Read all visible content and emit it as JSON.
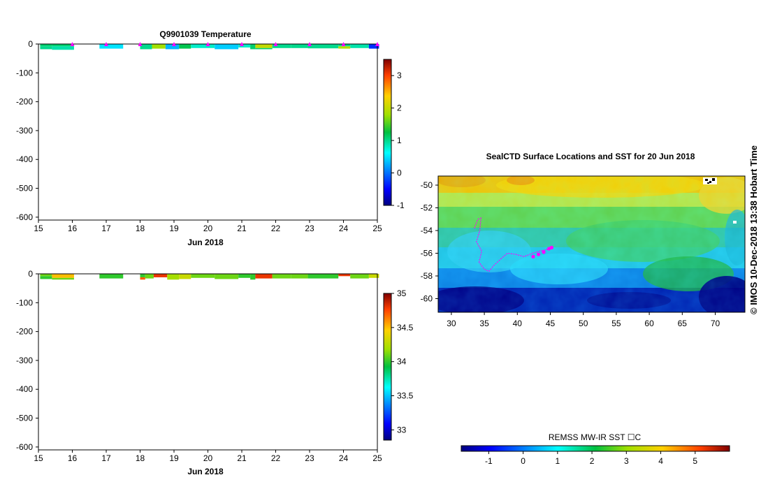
{
  "chart_data": [
    {
      "type": "heatmap",
      "title": "Q9901039  Temperature",
      "xlabel": "Jun 2018",
      "ylabel": "",
      "xlim": [
        15,
        25
      ],
      "ylim": [
        -610,
        0
      ],
      "x_ticks": [
        "15",
        "16",
        "17",
        "18",
        "19",
        "20",
        "21",
        "22",
        "23",
        "24",
        "25"
      ],
      "y_ticks": [
        "0",
        "-100",
        "-200",
        "-300",
        "-400",
        "-500",
        "-600"
      ],
      "colorbar": {
        "min": -1,
        "max": 3.5,
        "ticks": [
          "-1",
          "0",
          "1",
          "2",
          "3"
        ]
      },
      "profile_marker_days": [
        16,
        17,
        18,
        19,
        20,
        21,
        22,
        23,
        24,
        25
      ],
      "casts": [
        {
          "x0": 15.05,
          "x1": 15.4,
          "layers": [
            [
              0,
              8,
              1.1
            ],
            [
              8,
              18,
              1.0
            ]
          ]
        },
        {
          "x0": 15.4,
          "x1": 16.05,
          "layers": [
            [
              0,
              8,
              1.1
            ],
            [
              8,
              20,
              0.9
            ]
          ]
        },
        {
          "x0": 16.8,
          "x1": 17.5,
          "layers": [
            [
              0,
              16,
              0.5
            ]
          ]
        },
        {
          "x0": 18.0,
          "x1": 18.35,
          "layers": [
            [
              0,
              6,
              1.0
            ],
            [
              6,
              18,
              1.0
            ]
          ]
        },
        {
          "x0": 18.35,
          "x1": 18.75,
          "layers": [
            [
              0,
              16,
              1.8
            ]
          ]
        },
        {
          "x0": 18.75,
          "x1": 19.15,
          "layers": [
            [
              0,
              18,
              0.3
            ]
          ]
        },
        {
          "x0": 19.15,
          "x1": 19.5,
          "layers": [
            [
              0,
              16,
              1.2
            ]
          ]
        },
        {
          "x0": 19.5,
          "x1": 20.2,
          "layers": [
            [
              0,
              14,
              0.8
            ]
          ]
        },
        {
          "x0": 20.2,
          "x1": 20.9,
          "layers": [
            [
              0,
              18,
              0.4
            ]
          ]
        },
        {
          "x0": 20.9,
          "x1": 21.25,
          "layers": [
            [
              0,
              12,
              0.8
            ]
          ]
        },
        {
          "x0": 21.25,
          "x1": 21.4,
          "layers": [
            [
              0,
              18,
              1.1
            ]
          ]
        },
        {
          "x0": 21.4,
          "x1": 21.9,
          "layers": [
            [
              0,
              14,
              2.0
            ],
            [
              14,
              18,
              1.1
            ]
          ]
        },
        {
          "x0": 21.9,
          "x1": 22.45,
          "layers": [
            [
              0,
              14,
              1.0
            ]
          ]
        },
        {
          "x0": 22.45,
          "x1": 22.95,
          "layers": [
            [
              0,
              14,
              1.0
            ]
          ]
        },
        {
          "x0": 22.95,
          "x1": 23.85,
          "layers": [
            [
              0,
              15,
              1.0
            ]
          ]
        },
        {
          "x0": 23.85,
          "x1": 24.2,
          "layers": [
            [
              0,
              8,
              1.0
            ],
            [
              8,
              16,
              1.9
            ]
          ]
        },
        {
          "x0": 24.2,
          "x1": 24.75,
          "layers": [
            [
              0,
              14,
              0.9
            ]
          ]
        },
        {
          "x0": 24.75,
          "x1": 25.05,
          "layers": [
            [
              0,
              16,
              -0.3
            ]
          ]
        }
      ]
    },
    {
      "type": "heatmap",
      "title": "",
      "xlabel": "Jun 2018",
      "ylabel": "",
      "xlim": [
        15,
        25
      ],
      "ylim": [
        -610,
        0
      ],
      "x_ticks": [
        "15",
        "16",
        "17",
        "18",
        "19",
        "20",
        "21",
        "22",
        "23",
        "24",
        "25"
      ],
      "y_ticks": [
        "0",
        "-100",
        "-200",
        "-300",
        "-400",
        "-500",
        "-600"
      ],
      "colorbar": {
        "min": 32.85,
        "max": 35,
        "ticks": [
          "33",
          "33.5",
          "34",
          "34.5",
          "35"
        ],
        "tick_values": [
          33,
          33.5,
          34,
          34.5,
          35
        ]
      },
      "casts": [
        {
          "x0": 15.05,
          "x1": 15.4,
          "layers": [
            [
              0,
              8,
              34.1
            ],
            [
              8,
              18,
              34.0
            ]
          ]
        },
        {
          "x0": 15.4,
          "x1": 16.05,
          "layers": [
            [
              0,
              14,
              34.5
            ],
            [
              14,
              20,
              34.1
            ]
          ]
        },
        {
          "x0": 16.8,
          "x1": 17.5,
          "layers": [
            [
              0,
              16,
              34.0
            ]
          ]
        },
        {
          "x0": 18.0,
          "x1": 18.15,
          "layers": [
            [
              0,
              12,
              34.0
            ],
            [
              12,
              20,
              34.7
            ]
          ]
        },
        {
          "x0": 18.15,
          "x1": 18.4,
          "layers": [
            [
              0,
              16,
              34.1
            ]
          ]
        },
        {
          "x0": 18.4,
          "x1": 18.8,
          "layers": [
            [
              0,
              12,
              34.8
            ]
          ]
        },
        {
          "x0": 18.8,
          "x1": 19.15,
          "layers": [
            [
              0,
              20,
              34.2
            ]
          ]
        },
        {
          "x0": 19.15,
          "x1": 19.5,
          "layers": [
            [
              0,
              18,
              34.3
            ]
          ]
        },
        {
          "x0": 19.5,
          "x1": 20.2,
          "layers": [
            [
              0,
              14,
              34.1
            ]
          ]
        },
        {
          "x0": 20.2,
          "x1": 20.9,
          "layers": [
            [
              0,
              18,
              34.1
            ]
          ]
        },
        {
          "x0": 20.9,
          "x1": 21.25,
          "layers": [
            [
              0,
              14,
              34.0
            ]
          ]
        },
        {
          "x0": 21.25,
          "x1": 21.4,
          "layers": [
            [
              0,
              20,
              34.0
            ]
          ]
        },
        {
          "x0": 21.4,
          "x1": 21.9,
          "layers": [
            [
              0,
              16,
              34.8
            ]
          ]
        },
        {
          "x0": 21.9,
          "x1": 22.45,
          "layers": [
            [
              0,
              16,
              34.1
            ]
          ]
        },
        {
          "x0": 22.45,
          "x1": 22.95,
          "layers": [
            [
              0,
              16,
              34.1
            ]
          ]
        },
        {
          "x0": 22.95,
          "x1": 23.85,
          "layers": [
            [
              0,
              16,
              34.0
            ]
          ]
        },
        {
          "x0": 23.85,
          "x1": 24.2,
          "layers": [
            [
              0,
              8,
              34.8
            ]
          ]
        },
        {
          "x0": 24.2,
          "x1": 24.75,
          "layers": [
            [
              0,
              16,
              34.1
            ]
          ]
        },
        {
          "x0": 24.75,
          "x1": 25.05,
          "layers": [
            [
              0,
              14,
              34.3
            ]
          ]
        }
      ]
    },
    {
      "type": "heatmap",
      "title": "SealCTD Surface Locations and SST for 20 Jun 2018",
      "xlabel": "",
      "ylabel": "",
      "xlim": [
        28,
        74.5
      ],
      "ylim": [
        -61.2,
        -49.2
      ],
      "x_ticks": [
        "30",
        "35",
        "40",
        "45",
        "50",
        "55",
        "60",
        "65",
        "70"
      ],
      "x_tick_values": [
        30,
        35,
        40,
        45,
        50,
        55,
        60,
        65,
        70
      ],
      "y_ticks": [
        "-50",
        "-52",
        "-54",
        "-56",
        "-58",
        "-60"
      ],
      "y_tick_values": [
        -50,
        -52,
        -54,
        -56,
        -58,
        -60
      ],
      "colorbar": {
        "label": "REMSS MW-IR SST ☐C",
        "min": -1.8,
        "max": 6.0,
        "ticks": [
          "-1",
          "0",
          "1",
          "2",
          "3",
          "4",
          "5"
        ],
        "tick_values": [
          -1,
          0,
          1,
          2,
          3,
          4,
          5
        ]
      },
      "seal_track": [
        [
          33.5,
          -53.8
        ],
        [
          34.0,
          -53.0
        ],
        [
          34.5,
          -52.9
        ],
        [
          34.3,
          -54.0
        ],
        [
          33.8,
          -55.0
        ],
        [
          34.6,
          -55.8
        ],
        [
          34.2,
          -56.8
        ],
        [
          35.0,
          -57.4
        ],
        [
          35.7,
          -57.6
        ],
        [
          36.4,
          -57.1
        ],
        [
          37.5,
          -56.5
        ],
        [
          38.5,
          -56.0
        ],
        [
          39.8,
          -56.1
        ],
        [
          41.0,
          -56.3
        ],
        [
          42.3,
          -56.0
        ],
        [
          43.5,
          -55.8
        ],
        [
          45.0,
          -55.6
        ]
      ],
      "seal_highlight": [
        [
          42.4,
          -56.3
        ],
        [
          43.2,
          -56.1
        ],
        [
          44.0,
          -55.9
        ],
        [
          44.8,
          -55.6
        ],
        [
          45.2,
          -55.5
        ]
      ],
      "credit": "© IMOS 10-Dec-2018 13:38 Hobart Time"
    }
  ]
}
